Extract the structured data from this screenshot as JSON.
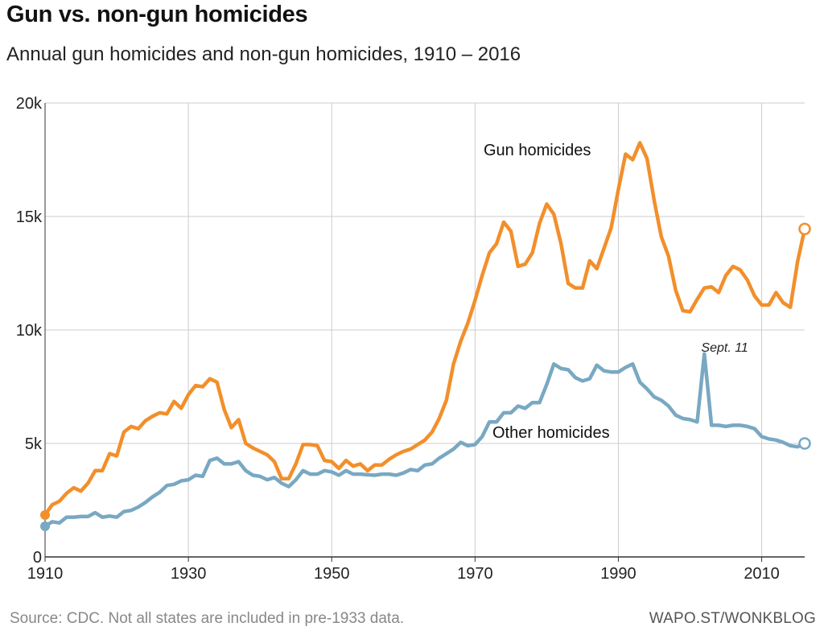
{
  "header": {
    "title": "Gun vs. non-gun homicides",
    "subtitle": "Annual gun homicides and non-gun homicides, 1910 – 2016"
  },
  "footer": {
    "source": "Source: CDC. Not all states are included in pre-1933 data.",
    "credit": "WAPO.ST/WONKBLOG"
  },
  "colors": {
    "gun": "#f28f2b",
    "other": "#79a8c2",
    "grid": "#cccccc",
    "axis": "#333333"
  },
  "chart_data": {
    "type": "line",
    "title": "Gun vs. non-gun homicides",
    "subtitle": "Annual gun homicides and non-gun homicides, 1910 – 2016",
    "xlabel": "",
    "ylabel": "",
    "xlim": [
      1910,
      2016
    ],
    "ylim": [
      0,
      20000
    ],
    "x_ticks": [
      1910,
      1930,
      1950,
      1970,
      1990,
      2010
    ],
    "x_tick_labels": [
      "1910",
      "1930",
      "1950",
      "1970",
      "1990",
      "2010"
    ],
    "y_ticks": [
      0,
      5000,
      10000,
      15000,
      20000
    ],
    "y_tick_labels": [
      "0",
      "5k",
      "10k",
      "15k",
      "20k"
    ],
    "grid": true,
    "x": [
      1910,
      1911,
      1912,
      1913,
      1914,
      1915,
      1916,
      1917,
      1918,
      1919,
      1920,
      1921,
      1922,
      1923,
      1924,
      1925,
      1926,
      1927,
      1928,
      1929,
      1930,
      1931,
      1932,
      1933,
      1934,
      1935,
      1936,
      1937,
      1938,
      1939,
      1940,
      1941,
      1942,
      1943,
      1944,
      1945,
      1946,
      1947,
      1948,
      1949,
      1950,
      1951,
      1952,
      1953,
      1954,
      1955,
      1956,
      1957,
      1958,
      1959,
      1960,
      1961,
      1962,
      1963,
      1964,
      1965,
      1966,
      1967,
      1968,
      1969,
      1970,
      1971,
      1972,
      1973,
      1974,
      1975,
      1976,
      1977,
      1978,
      1979,
      1980,
      1981,
      1982,
      1983,
      1984,
      1985,
      1986,
      1987,
      1988,
      1989,
      1990,
      1991,
      1992,
      1993,
      1994,
      1995,
      1996,
      1997,
      1998,
      1999,
      2000,
      2001,
      2002,
      2003,
      2004,
      2005,
      2006,
      2007,
      2008,
      2009,
      2010,
      2011,
      2012,
      2013,
      2014,
      2015,
      2016
    ],
    "series": [
      {
        "name": "Gun homicides",
        "label": "Gun homicides",
        "values": [
          1850,
          2300,
          2450,
          2800,
          3050,
          2900,
          3250,
          3800,
          3800,
          4550,
          4450,
          5500,
          5750,
          5650,
          6000,
          6200,
          6350,
          6300,
          6850,
          6550,
          7150,
          7550,
          7500,
          7850,
          7700,
          6500,
          5700,
          6050,
          5000,
          4800,
          4650,
          4500,
          4200,
          3450,
          3450,
          4100,
          4950,
          4950,
          4900,
          4250,
          4200,
          3900,
          4250,
          4000,
          4100,
          3800,
          4050,
          4050,
          4300,
          4500,
          4650,
          4750,
          4950,
          5150,
          5500,
          6100,
          6900,
          8500,
          9500,
          10300,
          11300,
          12400,
          13400,
          13800,
          14750,
          14350,
          12800,
          12900,
          13400,
          14700,
          15550,
          15100,
          13800,
          12050,
          11850,
          11850,
          13050,
          12700,
          13600,
          14500,
          16200,
          17750,
          17500,
          18250,
          17550,
          15700,
          14100,
          13250,
          11750,
          10850,
          10800,
          11350,
          11850,
          11900,
          11650,
          12400,
          12800,
          12650,
          12200,
          11500,
          11100,
          11100,
          11650,
          11200,
          11000,
          13000,
          14450
        ]
      },
      {
        "name": "Other homicides",
        "label": "Other homicides",
        "annotation": {
          "year": 2001,
          "text": "Sept. 11"
        },
        "values": [
          1350,
          1550,
          1500,
          1750,
          1750,
          1780,
          1780,
          1950,
          1750,
          1800,
          1750,
          2000,
          2050,
          2200,
          2400,
          2650,
          2850,
          3150,
          3200,
          3350,
          3400,
          3600,
          3550,
          4250,
          4350,
          4100,
          4100,
          4200,
          3800,
          3600,
          3550,
          3400,
          3500,
          3250,
          3100,
          3400,
          3800,
          3650,
          3650,
          3800,
          3750,
          3600,
          3800,
          3650,
          3650,
          3620,
          3600,
          3650,
          3650,
          3600,
          3700,
          3850,
          3800,
          4050,
          4100,
          4350,
          4550,
          4750,
          5050,
          4900,
          4950,
          5300,
          5950,
          5950,
          6350,
          6350,
          6650,
          6550,
          6800,
          6800,
          7600,
          8500,
          8300,
          8250,
          7900,
          7750,
          7850,
          8450,
          8200,
          8150,
          8150,
          8350,
          8500,
          7700,
          7400,
          7050,
          6900,
          6650,
          6250,
          6100,
          6050,
          5950,
          8950,
          5800,
          5800,
          5750,
          5800,
          5800,
          5750,
          5650,
          5300,
          5200,
          5150,
          5050,
          4900,
          4850,
          5000
        ]
      }
    ]
  }
}
